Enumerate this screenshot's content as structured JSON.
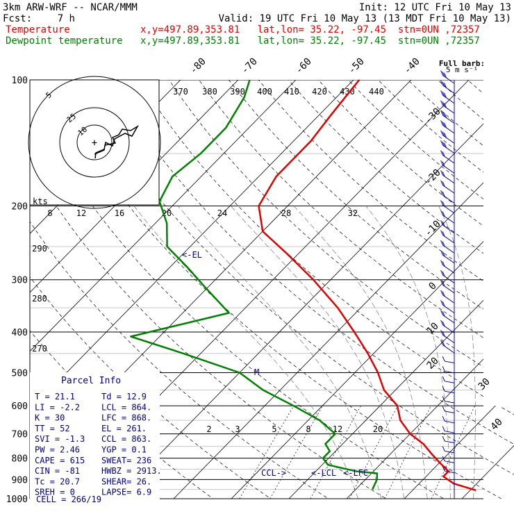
{
  "header": {
    "model_title": "3km ARW-WRF -- NCAR/MMM",
    "init": "Init: 12 UTC Fri 10 May 13",
    "fcst_label": "Fcst:",
    "fcst_hours": "7 h",
    "valid": "Valid: 19 UTC Fri 10 May 13 (13 MDT Fri 10 May 13)",
    "temperature": {
      "label": "Temperature",
      "loc": "x,y=497.89,353.81   lat,lon= 35.22, -97.45  stn=0UN ,72357",
      "color": "#e00000"
    },
    "dewpoint": {
      "label": "Dewpoint temperature",
      "loc": "x,y=497.89,353.81   lat,lon= 35.22, -97.45  stn=0UN ,72357",
      "color": "#008000"
    }
  },
  "hodograph": {
    "kts_label": "kts",
    "ring_labels": [
      "5",
      "10",
      "25"
    ],
    "center_mark": "+",
    "x_ticks": [
      "8",
      "12",
      "16",
      "20",
      "24",
      "28",
      "32"
    ]
  },
  "barb_legend": {
    "line1": "Full barb:",
    "line2": "5 m s⁻¹"
  },
  "parcel": {
    "title": "Parcel Info",
    "rows": [
      {
        "l1": "T",
        "v1": "21.1",
        "l2": "Td",
        "v2": "12.9"
      },
      {
        "l1": "LI",
        "v1": "-2.2",
        "l2": "LCL",
        "v2": "864."
      },
      {
        "l1": "K",
        "v1": "30",
        "l2": "LFC",
        "v2": "868."
      },
      {
        "l1": "TT",
        "v1": "52",
        "l2": "EL",
        "v2": "261."
      },
      {
        "l1": "SVI",
        "v1": "-1.3",
        "l2": "CCL",
        "v2": "863."
      },
      {
        "l1": "PW",
        "v1": "2.46",
        "l2": "YGP",
        "v2": "0.1"
      },
      {
        "l1": "CAPE",
        "v1": "615",
        "l2": "SWEAT",
        "v2": "236"
      },
      {
        "l1": "CIN",
        "v1": "-81",
        "l2": "HWBZ",
        "v2": "2913."
      },
      {
        "l1": "Tc",
        "v1": "20.7",
        "l2": "SHEAR",
        "v2": "26."
      },
      {
        "l1": "SREH",
        "v1": "0",
        "l2": "LAPSE",
        "v2": "6.9"
      }
    ],
    "cell": "CELL = 266/19"
  },
  "annotations": {
    "el": "<-EL",
    "ccl": "CCL->",
    "lcl": "<-LCL",
    "lfc": "<-LFC",
    "m": "M"
  },
  "colors": {
    "temperature": "#e00000",
    "dewpoint": "#008000",
    "barbs": "#0000b0",
    "annot": "#000080"
  },
  "chart_data": {
    "type": "line",
    "title": "",
    "pressure_levels": [
      100,
      200,
      300,
      400,
      500,
      600,
      700,
      800,
      900,
      1000
    ],
    "isotherm_labels": [
      "40",
      "30",
      "20",
      "10",
      "0",
      "-10",
      "-20",
      "-30",
      "-40",
      "-50",
      "-60",
      "-70",
      "-80"
    ],
    "dry_adiabat_labels": [
      "370",
      "380",
      "390",
      "400",
      "410",
      "420",
      "430",
      "440",
      "290",
      "280",
      "270"
    ],
    "mixing_ratio_labels": [
      "2",
      "3",
      "5",
      "8",
      "12",
      "20"
    ],
    "series": [
      {
        "name": "Temperature",
        "color": "#e00000",
        "p": [
          955,
          920,
          885,
          860,
          820,
          780,
          740,
          700,
          650,
          600,
          550,
          500,
          450,
          400,
          350,
          300,
          260,
          230,
          200,
          170,
          140,
          120,
          100
        ],
        "t": [
          31,
          26,
          23,
          23,
          20,
          17,
          14,
          10,
          6,
          3,
          -2,
          -6,
          -11,
          -17,
          -24,
          -33,
          -42,
          -50,
          -55,
          -57,
          -57,
          -58,
          -59
        ]
      },
      {
        "name": "Dewpoint temperature",
        "color": "#008000",
        "p": [
          950,
          900,
          870,
          860,
          830,
          800,
          770,
          740,
          700,
          650,
          600,
          550,
          500,
          450,
          410,
          360,
          310,
          280,
          250,
          220,
          195,
          170,
          150,
          130,
          110,
          100
        ],
        "t": [
          12.9,
          12,
          11,
          7,
          1,
          -1,
          -1,
          -3,
          -3,
          -8,
          -15,
          -23,
          -30,
          -43,
          -55,
          -42,
          -51,
          -57,
          -64,
          -68,
          -73,
          -75,
          -74,
          -74,
          -76,
          -78
        ]
      }
    ],
    "wind_barbs": 40
  }
}
